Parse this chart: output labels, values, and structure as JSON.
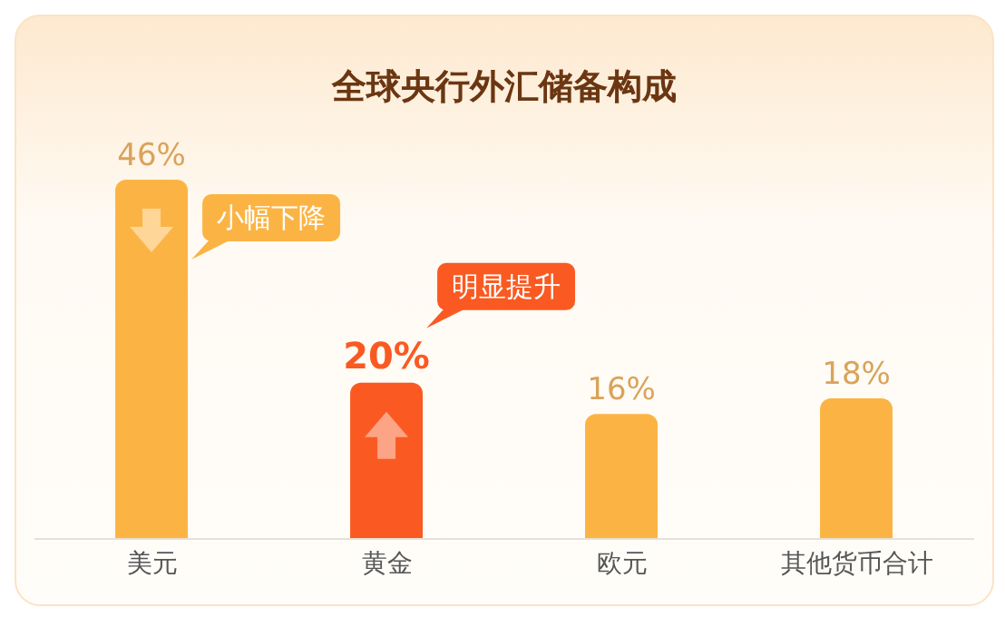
{
  "chart_data": {
    "type": "bar",
    "title": "全球央行外汇储备构成",
    "categories": [
      "美元",
      "黄金",
      "欧元",
      "其他货币合计"
    ],
    "values": [
      46,
      20,
      16,
      18
    ],
    "colors": [
      "#fbb444",
      "#fa5a22",
      "#fbb444",
      "#fbb444"
    ],
    "value_labels": [
      "46%",
      "20%",
      "16%",
      "18%"
    ],
    "annotations": [
      "小幅下降",
      "明显提升"
    ],
    "grid": false,
    "legend": false
  }
}
